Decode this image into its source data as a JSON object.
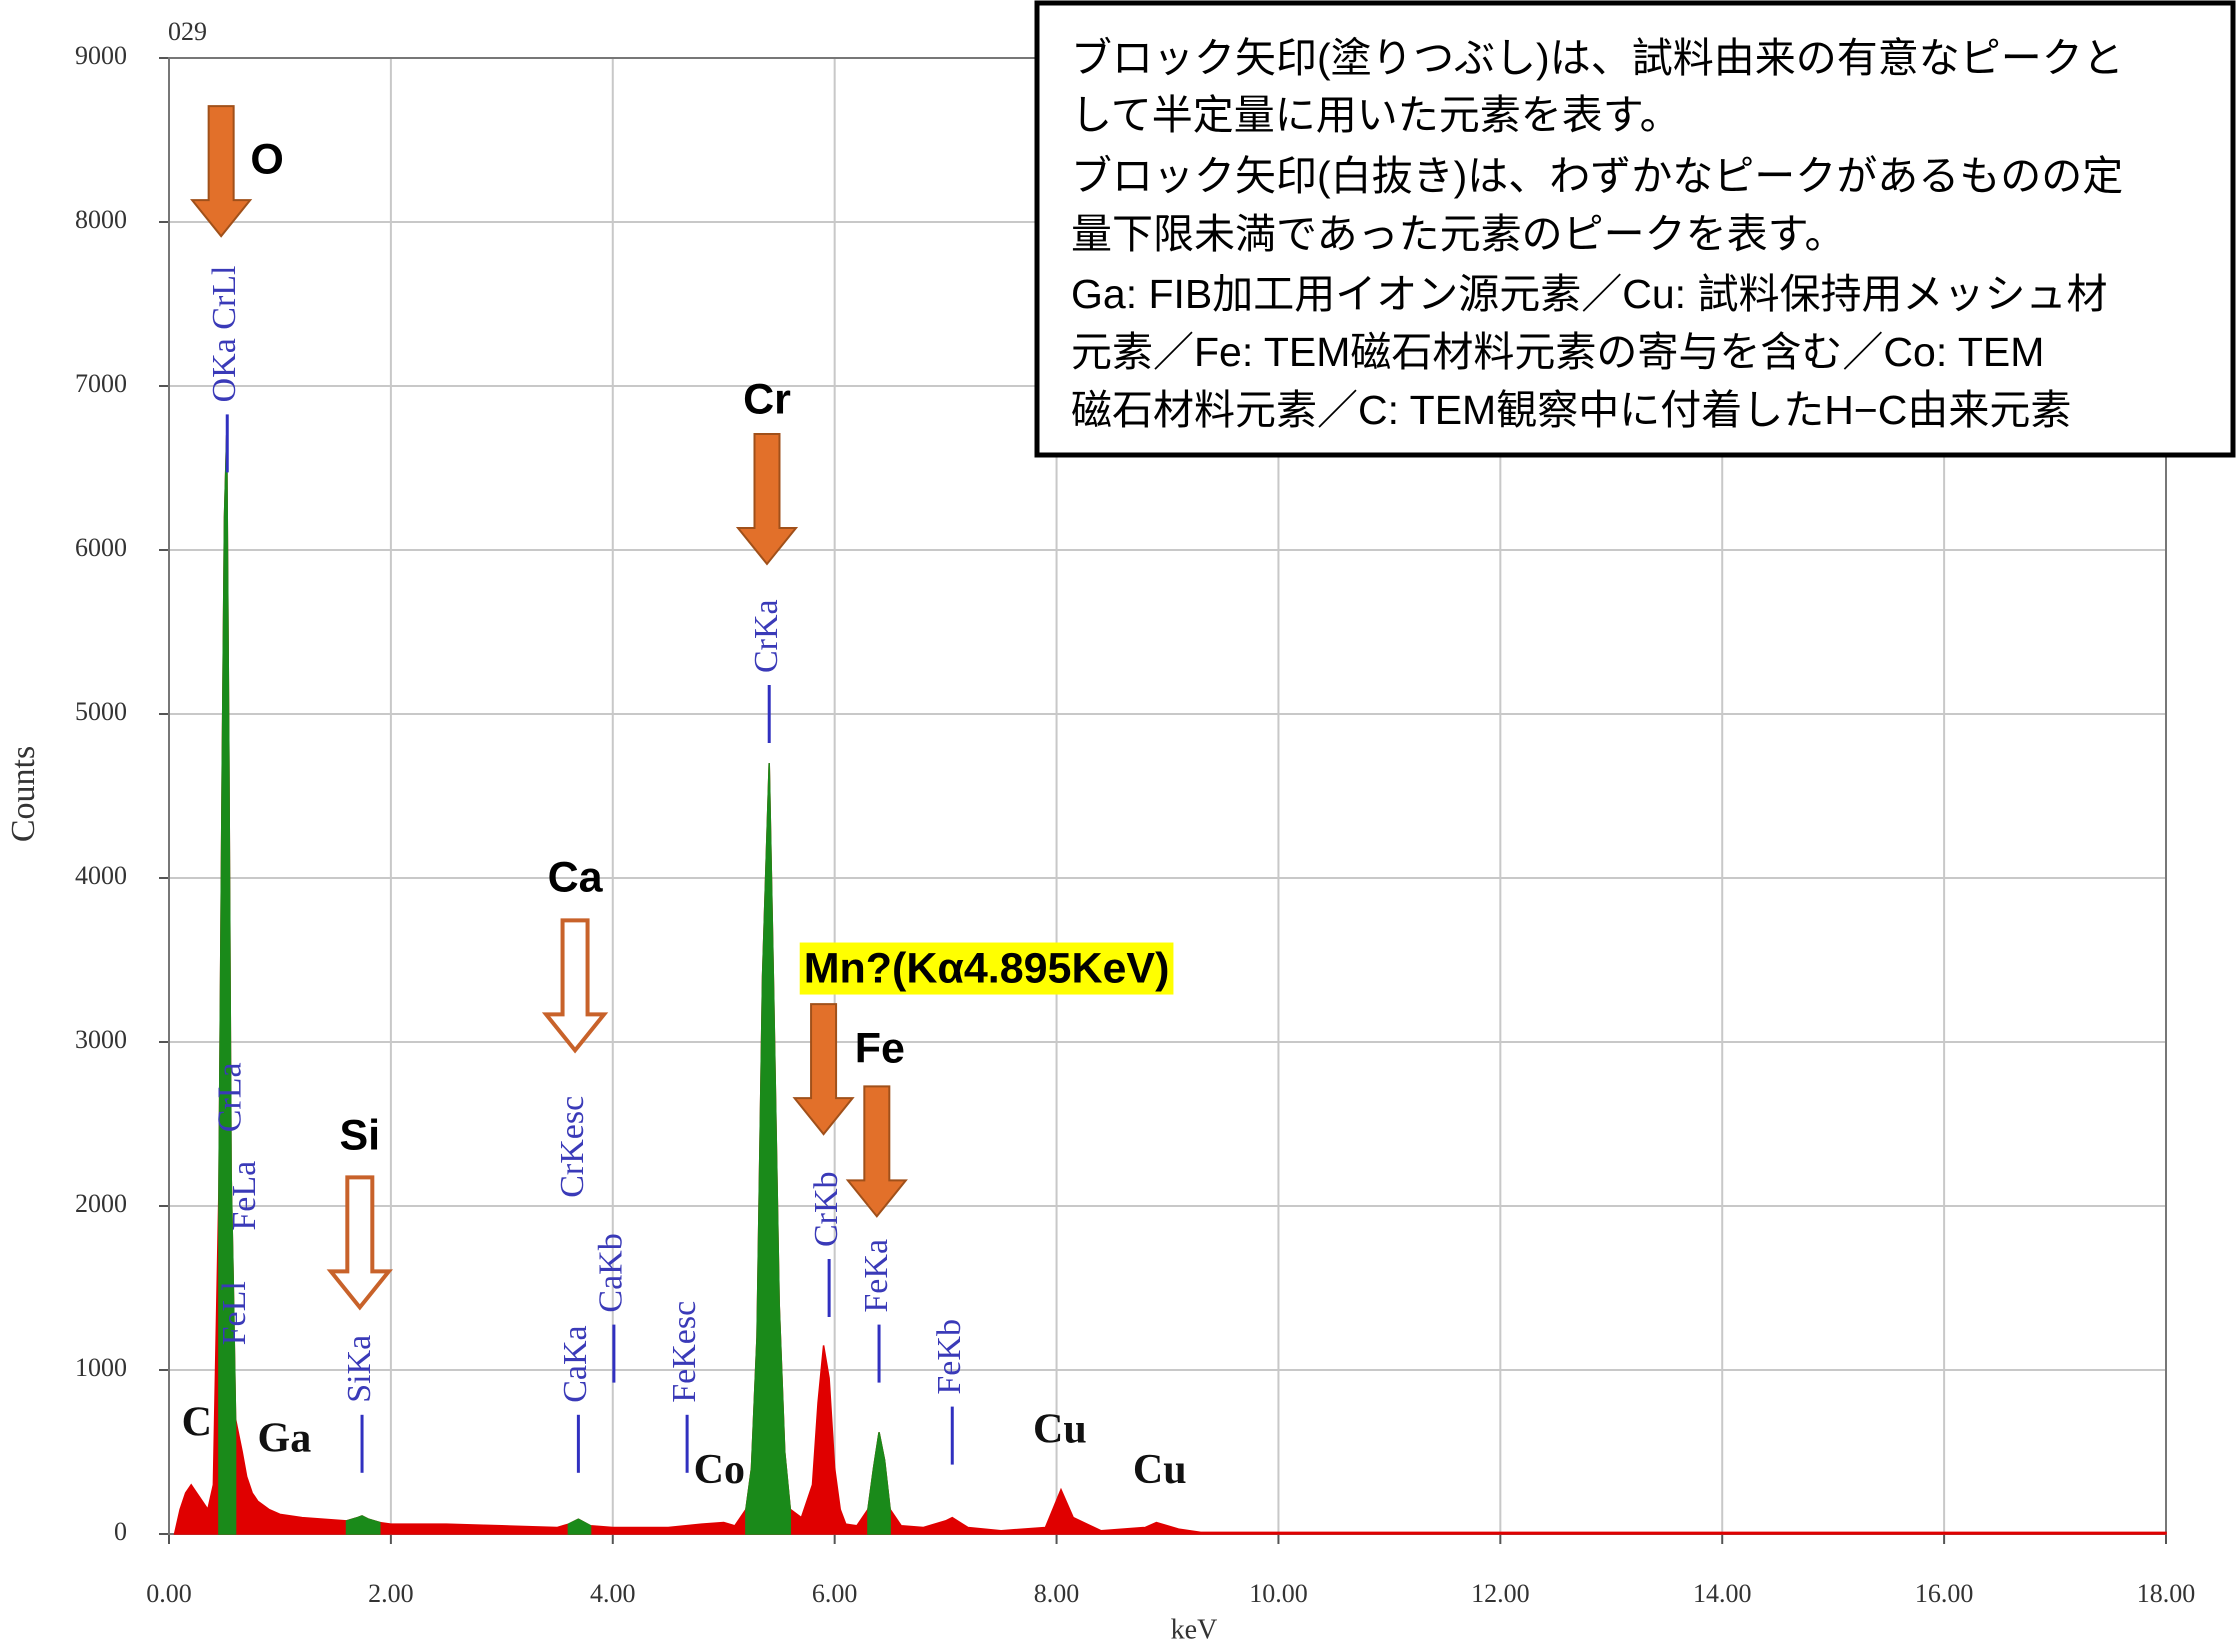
{
  "chart_data": {
    "type": "spectrum",
    "title": "029",
    "x_label": "keV",
    "y_label": "Counts",
    "xlim": [
      0,
      18
    ],
    "ylim": [
      0,
      9000
    ],
    "xticks": [
      {
        "value": 0,
        "label": "0.00"
      },
      {
        "value": 2,
        "label": "2.00"
      },
      {
        "value": 4,
        "label": "4.00"
      },
      {
        "value": 6,
        "label": "6.00"
      },
      {
        "value": 8,
        "label": "8.00"
      },
      {
        "value": 10,
        "label": "10.00"
      },
      {
        "value": 12,
        "label": "12.00"
      },
      {
        "value": 14,
        "label": "14.00"
      },
      {
        "value": 16,
        "label": "16.00"
      },
      {
        "value": 18,
        "label": "18.00"
      }
    ],
    "yticks": [
      0,
      1000,
      2000,
      3000,
      4000,
      5000,
      6000,
      7000,
      8000,
      9000
    ],
    "grid": true,
    "x": [
      0.05,
      0.1,
      0.15,
      0.2,
      0.25,
      0.3,
      0.35,
      0.4,
      0.45,
      0.48,
      0.5,
      0.52,
      0.54,
      0.56,
      0.58,
      0.6,
      0.63,
      0.66,
      0.7,
      0.75,
      0.8,
      0.9,
      1.0,
      1.2,
      1.4,
      1.6,
      1.7,
      1.74,
      1.8,
      1.9,
      2.0,
      2.5,
      3.0,
      3.5,
      3.6,
      3.69,
      3.8,
      4.0,
      4.5,
      4.8,
      5.0,
      5.1,
      5.2,
      5.25,
      5.3,
      5.35,
      5.41,
      5.45,
      5.5,
      5.55,
      5.6,
      5.7,
      5.8,
      5.85,
      5.9,
      5.95,
      6.0,
      6.05,
      6.1,
      6.2,
      6.3,
      6.35,
      6.4,
      6.45,
      6.5,
      6.6,
      6.8,
      7.0,
      7.06,
      7.2,
      7.5,
      7.9,
      8.04,
      8.15,
      8.4,
      8.8,
      8.9,
      9.1,
      9.3,
      10,
      12,
      14,
      16,
      18
    ],
    "series": [
      {
        "color": "#e00000",
        "values": [
          0,
          150,
          250,
          300,
          250,
          200,
          150,
          300,
          2100,
          4700,
          6200,
          6700,
          4700,
          2200,
          1500,
          700,
          600,
          500,
          350,
          250,
          200,
          150,
          120,
          100,
          90,
          80,
          100,
          110,
          90,
          70,
          60,
          60,
          50,
          40,
          60,
          90,
          50,
          40,
          40,
          60,
          70,
          50,
          150,
          400,
          1200,
          3400,
          4700,
          3300,
          1400,
          500,
          150,
          100,
          300,
          800,
          1150,
          950,
          400,
          150,
          60,
          50,
          150,
          400,
          620,
          450,
          150,
          50,
          40,
          80,
          100,
          40,
          20,
          40,
          270,
          100,
          20,
          40,
          70,
          30,
          10,
          10,
          10,
          10,
          10,
          10
        ]
      },
      {
        "color": "#1a8a1a",
        "values": [
          null,
          null,
          null,
          null,
          null,
          null,
          null,
          null,
          2100,
          4700,
          6200,
          6700,
          4700,
          2200,
          1500,
          700,
          null,
          null,
          null,
          null,
          null,
          null,
          null,
          null,
          null,
          80,
          100,
          110,
          90,
          70,
          null,
          null,
          null,
          null,
          60,
          90,
          50,
          null,
          null,
          null,
          null,
          null,
          150,
          400,
          1200,
          3400,
          4700,
          3300,
          1400,
          500,
          150,
          null,
          null,
          null,
          null,
          null,
          null,
          null,
          null,
          null,
          150,
          400,
          620,
          450,
          150,
          null,
          null,
          null,
          null,
          null,
          null,
          null,
          null,
          null,
          null,
          null,
          null,
          null,
          null,
          null,
          null,
          null,
          null,
          null
        ]
      }
    ],
    "peak_markers": [
      {
        "label": "OKa CrLl",
        "x": 0.525,
        "y": 6900,
        "line": true
      },
      {
        "label": "CrLa",
        "x": 0.573,
        "y": 2450,
        "line": false
      },
      {
        "label": "FeLl",
        "x": 0.615,
        "y": 1150,
        "line": false
      },
      {
        "label": "FeLa",
        "x": 0.705,
        "y": 1850,
        "line": false
      },
      {
        "label": "SiKa",
        "x": 1.74,
        "y": 800,
        "line": true
      },
      {
        "label": "CrKesc",
        "x": 3.66,
        "y": 2050,
        "line": false
      },
      {
        "label": "CaKa",
        "x": 3.69,
        "y": 800,
        "line": true
      },
      {
        "label": "CaKb",
        "x": 4.01,
        "y": 1350,
        "line": true
      },
      {
        "label": "FeKesc",
        "x": 4.67,
        "y": 800,
        "line": true
      },
      {
        "label": "CrKa",
        "x": 5.41,
        "y": 5250,
        "line": true
      },
      {
        "label": "CrKb",
        "x": 5.95,
        "y": 1750,
        "line": true
      },
      {
        "label": "FeKa",
        "x": 6.4,
        "y": 1350,
        "line": true
      },
      {
        "label": "FeKb",
        "x": 7.06,
        "y": 850,
        "line": true
      }
    ],
    "arrows": [
      {
        "label": "O",
        "x": 0.47,
        "y": 7914,
        "filled": true
      },
      {
        "label": "Cr",
        "x": 5.39,
        "y": 5915,
        "filled": true
      },
      {
        "label": "Ca",
        "x": 3.66,
        "y": 2949,
        "filled": false
      },
      {
        "label": "Si",
        "x": 1.72,
        "y": 1382,
        "filled": false
      },
      {
        "label": "Mn?(Kα4.895KeV)",
        "x": 5.9,
        "y": 2438,
        "filled": true
      },
      {
        "label": "Fe",
        "x": 6.38,
        "y": 1937,
        "filled": true
      }
    ],
    "element_labels": [
      {
        "text": "C",
        "x": 0.25,
        "y": 660
      },
      {
        "text": "Ga",
        "x": 1.04,
        "y": 563
      },
      {
        "text": "Co",
        "x": 4.96,
        "y": 370
      },
      {
        "text": "Cu",
        "x": 8.03,
        "y": 616
      },
      {
        "text": "Cu",
        "x": 8.93,
        "y": 370
      }
    ],
    "note_lines": [
      "ブロック矢印(塗りつぶし)は、試料由来の有意なピークと",
      "して半定量に用いた元素を表す。",
      "ブロック矢印(白抜き)は、わずかなピークがあるものの定",
      "量下限未満であった元素のピークを表す。",
      "Ga: FIB加工用イオン源元素／Cu: 試料保持用メッシュ材",
      "元素／Fe: TEM磁石材料元素の寄与を含む／Co: TEM",
      "磁石材料元素／C: TEM観察中に付着したH−C由来元素"
    ]
  }
}
